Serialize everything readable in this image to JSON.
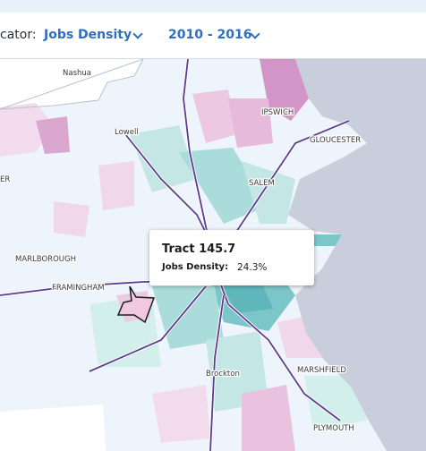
{
  "header": {
    "indicator_label": "cator:",
    "indicator": "Jobs Density",
    "period": "2010 - 2016"
  },
  "places": [
    "Nashua",
    "Lowell",
    "IPSWICH",
    "GLOUCESTER",
    "SALEM",
    "ER",
    "MARLBOROUGH",
    "FRAMINGHAM",
    "Brockton",
    "MARSHFIELD",
    "PLYMOUTH"
  ],
  "tooltip": {
    "title": "Tract 145.7",
    "metric_label": "Jobs Density:",
    "metric_value": "24.3%"
  }
}
